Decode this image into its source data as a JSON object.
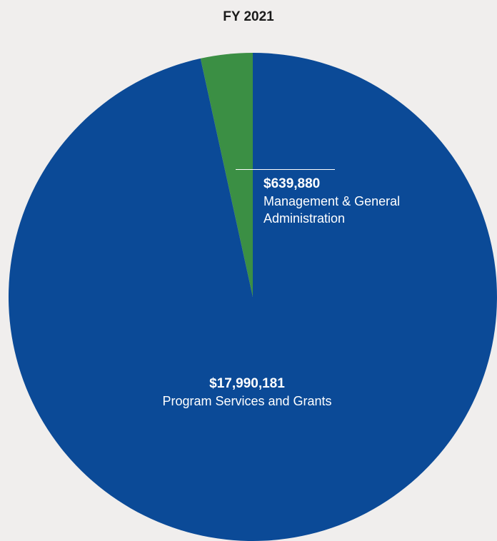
{
  "chart_data": {
    "type": "pie",
    "title": "FY 2021",
    "slices": [
      {
        "label": "Management & General Administration",
        "label_lines": [
          "Management & General",
          "Administration"
        ],
        "value": 639880,
        "value_text": "$639,880",
        "color": "#3b8f44"
      },
      {
        "label": "Program Services and Grants",
        "label_lines": [
          "Program Services and Grants"
        ],
        "value": 17990181,
        "value_text": "$17,990,181",
        "color": "#0b4a97"
      }
    ]
  },
  "colors": {
    "background": "#f0eeed",
    "label_text": "#ffffff",
    "title_text": "#1a1a1a"
  }
}
